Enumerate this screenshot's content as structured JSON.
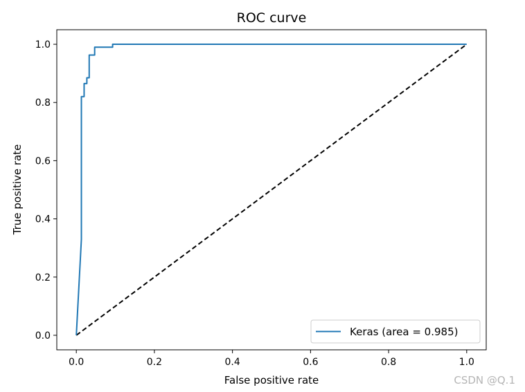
{
  "chart_data": {
    "type": "line",
    "title": "ROC curve",
    "xlabel": "False positive rate",
    "ylabel": "True positive rate",
    "xlim": [
      -0.05,
      1.05
    ],
    "ylim": [
      -0.05,
      1.05
    ],
    "x_ticks": [
      0.0,
      0.2,
      0.4,
      0.6,
      0.8,
      1.0
    ],
    "y_ticks": [
      0.0,
      0.2,
      0.4,
      0.6,
      0.8,
      1.0
    ],
    "x_tick_labels": [
      "0.0",
      "0.2",
      "0.4",
      "0.6",
      "0.8",
      "1.0"
    ],
    "y_tick_labels": [
      "0.0",
      "0.2",
      "0.4",
      "0.6",
      "0.8",
      "1.0"
    ],
    "grid": false,
    "legend_position": "lower-right",
    "series": [
      {
        "name": "Keras (area = 0.985)",
        "color": "#1f77b4",
        "style": "solid",
        "x": [
          0.0,
          0.013,
          0.013,
          0.02,
          0.02,
          0.027,
          0.027,
          0.033,
          0.033,
          0.047,
          0.047,
          0.093,
          0.093,
          1.0
        ],
        "y": [
          0.0,
          0.33,
          0.82,
          0.82,
          0.865,
          0.865,
          0.885,
          0.885,
          0.963,
          0.963,
          0.99,
          0.99,
          1.0,
          1.0
        ]
      },
      {
        "name": "",
        "color": "#000000",
        "style": "dashed",
        "x": [
          0.0,
          1.0
        ],
        "y": [
          0.0,
          1.0
        ]
      }
    ]
  },
  "watermark": "CSDN @Q.1"
}
